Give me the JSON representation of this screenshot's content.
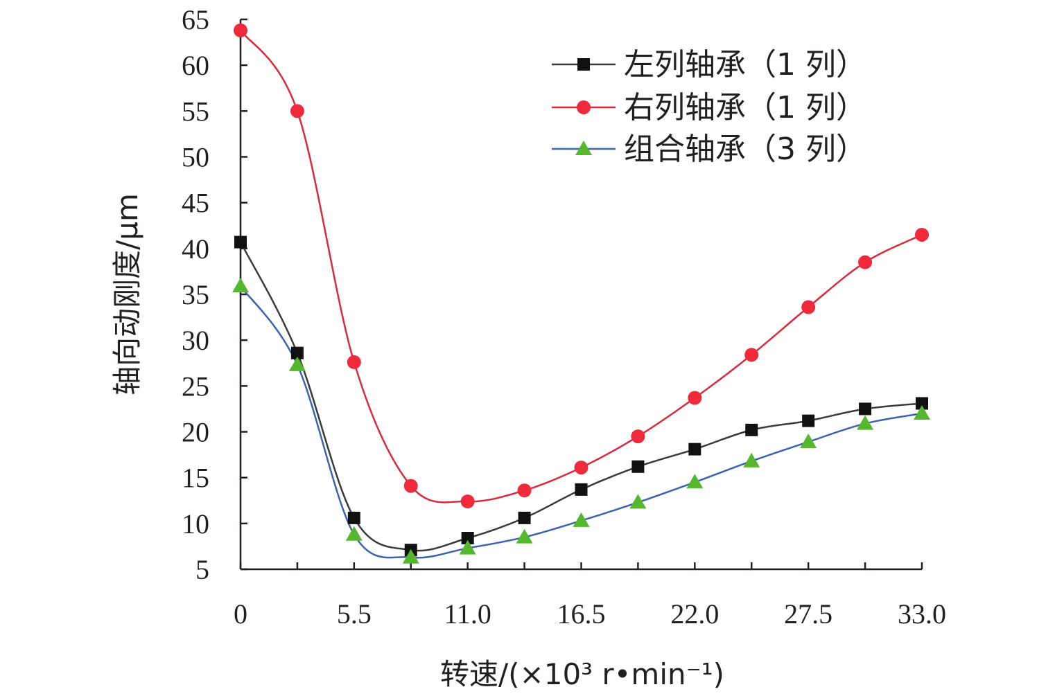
{
  "chart_data": {
    "type": "line",
    "title": "",
    "xlabel": "转速/(×10³ r•min⁻¹)",
    "ylabel": "轴向动刚度/μm",
    "xlim": [
      0,
      33
    ],
    "ylim": [
      5,
      65
    ],
    "x_ticks": [
      0,
      5.5,
      11.0,
      16.5,
      22.0,
      27.5,
      33.0
    ],
    "x_tick_labels": [
      "0",
      "5.5",
      "11.0",
      "16.5",
      "22.0",
      "27.5",
      "33.0"
    ],
    "y_ticks": [
      5,
      10,
      15,
      20,
      25,
      30,
      35,
      40,
      45,
      50,
      55,
      60,
      65
    ],
    "y_tick_labels": [
      "5",
      "10",
      "15",
      "20",
      "25",
      "30",
      "35",
      "40",
      "45",
      "50",
      "55",
      "60",
      "65"
    ],
    "x": [
      0,
      2.75,
      5.5,
      8.25,
      11.0,
      13.75,
      16.5,
      19.25,
      22.0,
      24.75,
      27.5,
      30.25,
      33.0
    ],
    "legend_position": "top-right",
    "grid": false,
    "series": [
      {
        "name": "左列轴承（1 列）",
        "marker": "square",
        "color": "#3a3a3a",
        "marker_color": "#111111",
        "values": [
          40.7,
          28.6,
          10.6,
          7.1,
          8.4,
          10.6,
          13.7,
          16.2,
          18.1,
          20.2,
          21.2,
          22.5,
          23.1
        ]
      },
      {
        "name": "右列轴承（1 列）",
        "marker": "circle",
        "color": "#d9293b",
        "marker_color": "#ee2a3b",
        "values": [
          63.8,
          55.0,
          27.6,
          14.1,
          12.4,
          13.6,
          16.1,
          19.5,
          23.7,
          28.4,
          33.6,
          38.5,
          41.5
        ]
      },
      {
        "name": "组合轴承（3 列）",
        "marker": "triangle",
        "color": "#3a62b0",
        "marker_color": "#55b72e",
        "values": [
          35.9,
          27.3,
          8.8,
          6.3,
          7.3,
          8.5,
          10.3,
          12.3,
          14.5,
          16.8,
          18.9,
          20.9,
          22.0
        ]
      }
    ]
  }
}
